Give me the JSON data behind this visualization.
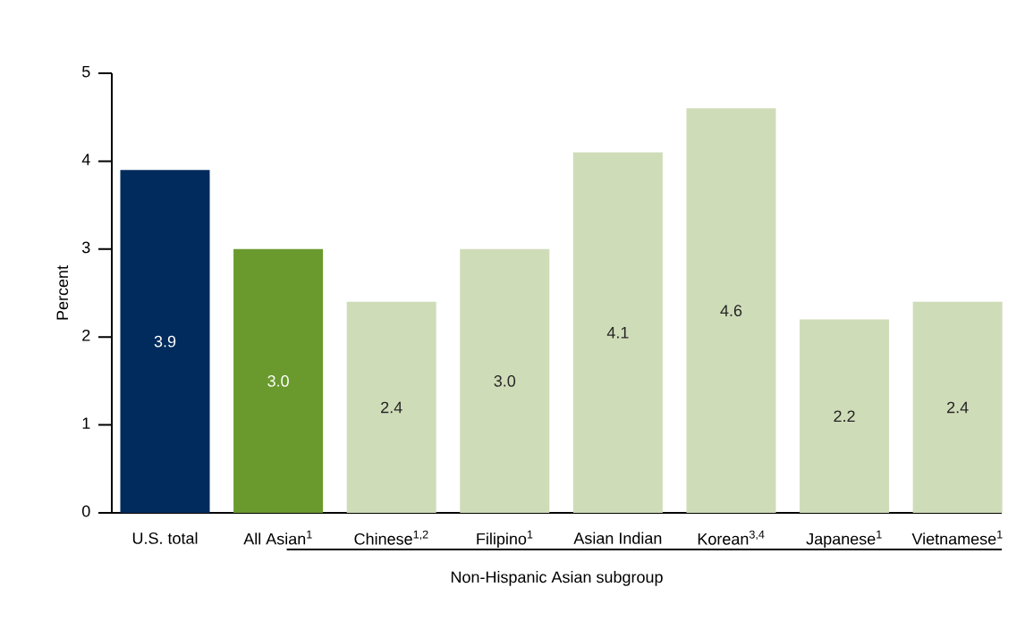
{
  "chart_data": {
    "type": "bar",
    "categories": [
      "U.S. total",
      "All Asian$^{1}$",
      "Chinese$^{1,2}$",
      "Filipino$^{1}$",
      "Asian Indian",
      "Korean$^{3,4}$",
      "Japanese$^{1}$",
      "Vietnamese$^{1}$"
    ],
    "values": [
      3.9,
      3.0,
      2.4,
      3.0,
      4.1,
      4.6,
      2.2,
      2.4
    ],
    "colors": [
      "#002b5c",
      "#6a9a2e",
      "#cfdcb8",
      "#cfdcb8",
      "#cfdcb8",
      "#cfdcb8",
      "#cfdcb8",
      "#cfdcb8"
    ],
    "value_labels": [
      "3.9",
      "3.0",
      "2.4",
      "3.0",
      "4.1",
      "4.6",
      "2.2",
      "2.4"
    ],
    "xlabel": "Non-Hispanic Asian subgroup",
    "ylabel": "Percent",
    "ylim": [
      0,
      5
    ],
    "yticks": [
      0,
      1,
      2,
      3,
      4,
      5
    ],
    "grid": false
  }
}
